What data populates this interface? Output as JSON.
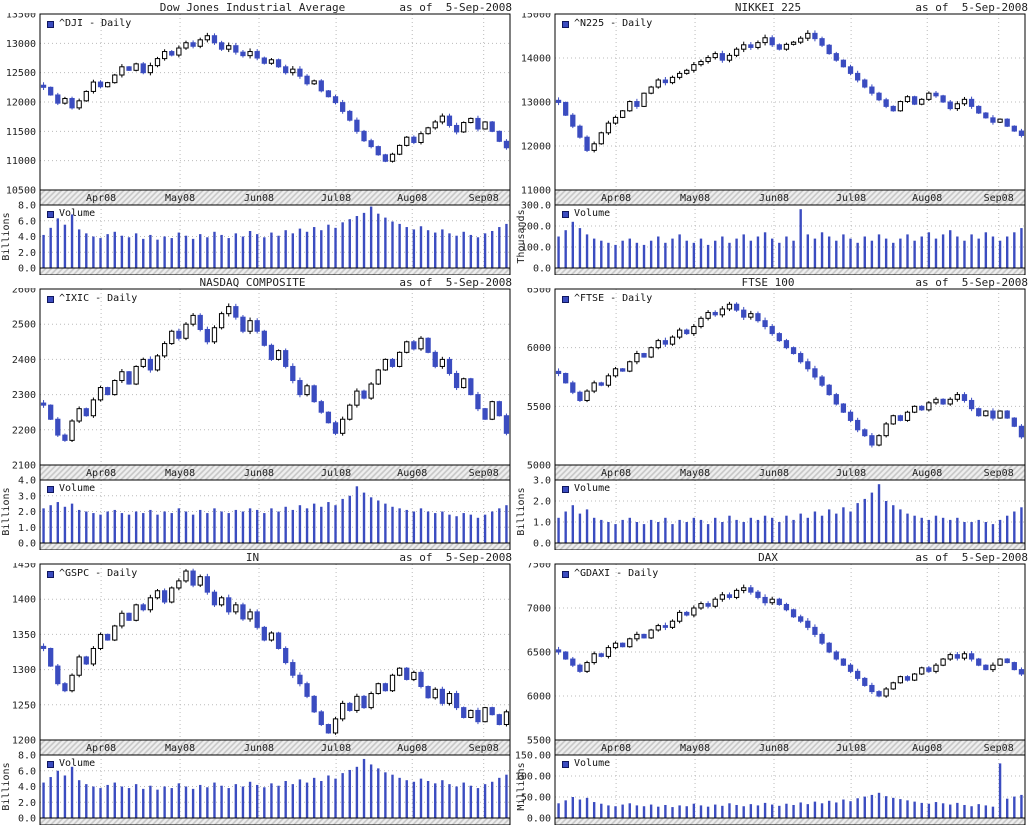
{
  "page": {
    "as_of_label": "as of  5-Sep-2008"
  },
  "colors": {
    "candle_down": "#3b4cc0",
    "candle_up_fill": "#ffffff",
    "outline": "#000000",
    "volume_bar": "#3b4cc0",
    "grid": "#bbbbbb",
    "band_bg": "#efefef",
    "band_hatch": "#c6c6c6"
  },
  "chart_data": [
    {
      "type": "candlestick",
      "symbol_title": "Dow Jones Industrial Average",
      "as_of": "as of  5-Sep-2008",
      "legend": "^DJI - Daily",
      "volume_legend": "Volume",
      "x_labels": [
        "Apr08",
        "May08",
        "Jun08",
        "Jul08",
        "Aug08",
        "Sep08"
      ],
      "price_axis": {
        "min": 10500,
        "max": 13500,
        "ticks": [
          "13500",
          "13000",
          "12500",
          "12000",
          "11500",
          "11000",
          "10500"
        ]
      },
      "volume_axis": {
        "unit": "Billions",
        "max": 8,
        "ticks": [
          "8.0",
          "6.0",
          "4.0",
          "2.0",
          "0.0"
        ]
      },
      "closes": [
        12250,
        12120,
        11980,
        12060,
        11900,
        12020,
        12180,
        12340,
        12260,
        12330,
        12460,
        12600,
        12540,
        12650,
        12500,
        12620,
        12740,
        12860,
        12800,
        12920,
        13010,
        12950,
        13060,
        13130,
        13010,
        12900,
        12960,
        12850,
        12790,
        12860,
        12750,
        12660,
        12720,
        12600,
        12500,
        12560,
        12440,
        12310,
        12360,
        12190,
        12090,
        11990,
        11840,
        11690,
        11500,
        11340,
        11240,
        11100,
        10990,
        11110,
        11260,
        11400,
        11310,
        11460,
        11560,
        11660,
        11760,
        11600,
        11490,
        11650,
        11720,
        11540,
        11660,
        11500,
        11330,
        11220
      ],
      "volumes": [
        4.2,
        5.1,
        6.3,
        5.5,
        6.8,
        4.9,
        4.4,
        4.0,
        3.8,
        4.3,
        4.6,
        4.1,
        3.9,
        4.4,
        3.7,
        4.2,
        3.6,
        4.0,
        3.8,
        4.5,
        4.1,
        3.7,
        4.3,
        3.9,
        4.6,
        4.2,
        3.8,
        4.4,
        4.0,
        4.7,
        4.3,
        3.9,
        4.5,
        4.1,
        4.8,
        4.4,
        5.0,
        4.6,
        5.2,
        4.8,
        5.5,
        5.1,
        5.8,
        6.2,
        6.6,
        7.0,
        7.8,
        6.9,
        6.4,
        5.9,
        5.6,
        5.2,
        4.9,
        5.3,
        4.8,
        4.5,
        4.9,
        4.4,
        4.1,
        4.6,
        4.2,
        3.9,
        4.4,
        4.7,
        5.2,
        5.6
      ]
    },
    {
      "type": "candlestick",
      "symbol_title": "NIKKEI 225",
      "as_of": "as of  5-Sep-2008",
      "legend": "^N225 - Daily",
      "volume_legend": "Volume",
      "x_labels": [
        "Apr08",
        "May08",
        "Jun08",
        "Jul08",
        "Aug08",
        "Sep08"
      ],
      "price_axis": {
        "min": 11000,
        "max": 15000,
        "ticks": [
          "15000",
          "14000",
          "13000",
          "12000",
          "11000"
        ]
      },
      "volume_axis": {
        "unit": "Thousands",
        "max": 300,
        "ticks": [
          "300.0",
          "200.0",
          "100.0",
          "0.0"
        ]
      },
      "closes": [
        12990,
        12700,
        12450,
        12200,
        11900,
        12050,
        12300,
        12520,
        12650,
        12800,
        13010,
        12900,
        13200,
        13340,
        13500,
        13440,
        13560,
        13650,
        13720,
        13850,
        13920,
        14010,
        14100,
        13950,
        14060,
        14200,
        14300,
        14240,
        14350,
        14460,
        14300,
        14200,
        14310,
        14360,
        14450,
        14560,
        14440,
        14290,
        14100,
        13950,
        13800,
        13650,
        13500,
        13340,
        13200,
        13050,
        12900,
        12800,
        13010,
        13120,
        12950,
        13060,
        13200,
        13140,
        13000,
        12850,
        12960,
        13060,
        12900,
        12750,
        12640,
        12540,
        12610,
        12450,
        12340,
        12240
      ],
      "volumes": [
        150,
        180,
        220,
        190,
        160,
        140,
        130,
        120,
        110,
        130,
        140,
        120,
        110,
        130,
        150,
        120,
        140,
        160,
        130,
        120,
        140,
        110,
        130,
        150,
        120,
        140,
        160,
        130,
        150,
        170,
        140,
        120,
        150,
        130,
        280,
        160,
        140,
        170,
        150,
        130,
        160,
        140,
        120,
        150,
        130,
        160,
        140,
        120,
        140,
        160,
        130,
        150,
        170,
        140,
        160,
        180,
        150,
        130,
        160,
        140,
        170,
        150,
        130,
        150,
        170,
        190
      ]
    },
    {
      "type": "candlestick",
      "symbol_title": "NASDAQ COMPOSITE",
      "as_of": "as of  5-Sep-2008",
      "legend": "^IXIC - Daily",
      "volume_legend": "Volume",
      "x_labels": [
        "Apr08",
        "May08",
        "Jun08",
        "Jul08",
        "Aug08",
        "Sep08"
      ],
      "price_axis": {
        "min": 2100,
        "max": 2600,
        "ticks": [
          "2600",
          "2500",
          "2400",
          "2300",
          "2200",
          "2100"
        ]
      },
      "volume_axis": {
        "unit": "Billions",
        "max": 4,
        "ticks": [
          "4.0",
          "3.0",
          "2.0",
          "1.0",
          "0.0"
        ]
      },
      "closes": [
        2270,
        2230,
        2185,
        2170,
        2225,
        2260,
        2240,
        2285,
        2320,
        2300,
        2340,
        2365,
        2330,
        2380,
        2400,
        2370,
        2410,
        2445,
        2480,
        2460,
        2500,
        2525,
        2485,
        2450,
        2490,
        2530,
        2550,
        2520,
        2480,
        2510,
        2480,
        2440,
        2400,
        2425,
        2380,
        2340,
        2300,
        2325,
        2280,
        2250,
        2220,
        2190,
        2230,
        2270,
        2310,
        2290,
        2330,
        2370,
        2400,
        2380,
        2420,
        2450,
        2430,
        2460,
        2420,
        2380,
        2400,
        2360,
        2320,
        2345,
        2300,
        2260,
        2230,
        2280,
        2240,
        2190
      ],
      "volumes": [
        2.2,
        2.4,
        2.6,
        2.3,
        2.5,
        2.1,
        2.0,
        1.9,
        1.8,
        2.0,
        2.1,
        1.9,
        1.8,
        2.0,
        1.9,
        2.1,
        1.8,
        2.0,
        1.9,
        2.2,
        2.0,
        1.8,
        2.1,
        1.9,
        2.2,
        2.0,
        1.9,
        2.1,
        2.0,
        2.2,
        2.1,
        1.9,
        2.2,
        2.0,
        2.3,
        2.1,
        2.4,
        2.2,
        2.5,
        2.3,
        2.6,
        2.4,
        2.8,
        3.0,
        3.6,
        3.2,
        2.9,
        2.7,
        2.5,
        2.3,
        2.2,
        2.1,
        2.0,
        2.2,
        2.0,
        1.9,
        2.0,
        1.8,
        1.7,
        1.9,
        1.8,
        1.6,
        1.8,
        2.0,
        2.2,
        2.4
      ]
    },
    {
      "type": "candlestick",
      "symbol_title": "FTSE 100",
      "as_of": "as of  5-Sep-2008",
      "legend": "^FTSE - Daily",
      "volume_legend": "Volume",
      "x_labels": [
        "Apr08",
        "May08",
        "Jun08",
        "Jul08",
        "Aug08",
        "Sep08"
      ],
      "price_axis": {
        "min": 5000,
        "max": 6500,
        "ticks": [
          "6500",
          "6000",
          "5500",
          "5000"
        ]
      },
      "volume_axis": {
        "unit": "Billions",
        "max": 3,
        "ticks": [
          "3.0",
          "2.0",
          "1.0",
          "0.0"
        ]
      },
      "closes": [
        5780,
        5700,
        5620,
        5550,
        5630,
        5700,
        5680,
        5760,
        5820,
        5800,
        5880,
        5950,
        5920,
        6000,
        6060,
        6030,
        6090,
        6150,
        6120,
        6180,
        6250,
        6300,
        6280,
        6330,
        6370,
        6320,
        6260,
        6290,
        6230,
        6180,
        6120,
        6060,
        6000,
        5950,
        5880,
        5820,
        5750,
        5680,
        5600,
        5520,
        5450,
        5380,
        5300,
        5250,
        5170,
        5250,
        5350,
        5420,
        5380,
        5450,
        5500,
        5470,
        5530,
        5560,
        5520,
        5560,
        5600,
        5550,
        5480,
        5420,
        5460,
        5400,
        5460,
        5400,
        5330,
        5240
      ],
      "volumes": [
        1.2,
        1.5,
        1.8,
        1.4,
        1.6,
        1.2,
        1.1,
        1.0,
        0.9,
        1.1,
        1.2,
        1.0,
        0.9,
        1.1,
        1.0,
        1.2,
        0.9,
        1.1,
        1.0,
        1.2,
        1.1,
        0.9,
        1.2,
        1.0,
        1.3,
        1.1,
        1.0,
        1.2,
        1.1,
        1.3,
        1.2,
        1.0,
        1.3,
        1.1,
        1.4,
        1.2,
        1.5,
        1.3,
        1.6,
        1.4,
        1.7,
        1.5,
        1.9,
        2.1,
        2.4,
        2.8,
        2.0,
        1.8,
        1.6,
        1.4,
        1.3,
        1.2,
        1.1,
        1.3,
        1.2,
        1.1,
        1.2,
        1.0,
        1.0,
        1.1,
        1.0,
        0.9,
        1.1,
        1.3,
        1.5,
        1.7
      ]
    },
    {
      "type": "candlestick",
      "symbol_title": "IN",
      "as_of": "as of  5-Sep-2008",
      "legend": "^GSPC - Daily",
      "volume_legend": "Volume",
      "x_labels": [
        "Apr08",
        "May08",
        "Jun08",
        "Jul08",
        "Aug08",
        "Sep08"
      ],
      "price_axis": {
        "min": 1200,
        "max": 1450,
        "ticks": [
          "1450",
          "1400",
          "1350",
          "1300",
          "1250",
          "1200"
        ]
      },
      "volume_axis": {
        "unit": "Billions",
        "max": 8,
        "ticks": [
          "8.0",
          "6.0",
          "4.0",
          "2.0",
          "0.0"
        ]
      },
      "closes": [
        1330,
        1305,
        1280,
        1270,
        1292,
        1318,
        1308,
        1330,
        1350,
        1342,
        1362,
        1380,
        1370,
        1392,
        1385,
        1402,
        1412,
        1396,
        1416,
        1426,
        1440,
        1420,
        1432,
        1410,
        1392,
        1402,
        1382,
        1392,
        1372,
        1382,
        1360,
        1342,
        1352,
        1330,
        1310,
        1292,
        1280,
        1262,
        1240,
        1222,
        1210,
        1230,
        1252,
        1242,
        1262,
        1246,
        1266,
        1280,
        1270,
        1292,
        1302,
        1286,
        1296,
        1276,
        1260,
        1272,
        1252,
        1266,
        1246,
        1232,
        1242,
        1226,
        1246,
        1236,
        1222,
        1240
      ],
      "volumes": [
        4.5,
        5.2,
        6.0,
        5.4,
        6.5,
        4.8,
        4.3,
        4.0,
        3.8,
        4.2,
        4.5,
        4.0,
        3.8,
        4.3,
        3.7,
        4.1,
        3.6,
        4.0,
        3.8,
        4.4,
        4.0,
        3.7,
        4.2,
        3.9,
        4.5,
        4.1,
        3.8,
        4.3,
        4.0,
        4.6,
        4.2,
        3.9,
        4.4,
        4.1,
        4.7,
        4.3,
        4.9,
        4.5,
        5.1,
        4.7,
        5.4,
        5.0,
        5.7,
        6.1,
        6.5,
        7.5,
        6.8,
        6.3,
        5.8,
        5.5,
        5.1,
        4.8,
        4.6,
        5.0,
        4.7,
        4.4,
        4.8,
        4.3,
        4.0,
        4.5,
        4.1,
        3.8,
        4.3,
        4.6,
        5.1,
        5.5
      ]
    },
    {
      "type": "candlestick",
      "symbol_title": "DAX",
      "as_of": "as of  5-Sep-2008",
      "legend": "^GDAXI - Daily",
      "volume_legend": "Volume",
      "x_labels": [
        "Apr08",
        "May08",
        "Jun08",
        "Jul08",
        "Aug08",
        "Sep08"
      ],
      "price_axis": {
        "min": 5500,
        "max": 7500,
        "ticks": [
          "7500",
          "7000",
          "6500",
          "6000",
          "5500"
        ]
      },
      "volume_axis": {
        "unit": "Millions",
        "max": 150,
        "ticks": [
          "150.00",
          "100.00",
          "50.00",
          "0.00"
        ]
      },
      "closes": [
        6500,
        6420,
        6350,
        6280,
        6380,
        6480,
        6450,
        6550,
        6600,
        6560,
        6650,
        6700,
        6660,
        6750,
        6800,
        6780,
        6850,
        6950,
        6920,
        7000,
        7050,
        7020,
        7100,
        7150,
        7120,
        7200,
        7230,
        7180,
        7120,
        7060,
        7100,
        7040,
        6980,
        6900,
        6850,
        6780,
        6700,
        6600,
        6500,
        6420,
        6350,
        6280,
        6200,
        6120,
        6050,
        6000,
        6080,
        6150,
        6220,
        6180,
        6250,
        6320,
        6280,
        6350,
        6420,
        6470,
        6430,
        6480,
        6420,
        6350,
        6300,
        6350,
        6420,
        6380,
        6300,
        6250
      ],
      "volumes": [
        35,
        42,
        50,
        44,
        48,
        38,
        34,
        30,
        28,
        32,
        35,
        30,
        28,
        32,
        27,
        31,
        26,
        30,
        28,
        34,
        30,
        27,
        32,
        29,
        35,
        31,
        28,
        33,
        30,
        36,
        32,
        29,
        34,
        31,
        37,
        33,
        39,
        35,
        41,
        37,
        44,
        40,
        47,
        51,
        55,
        60,
        52,
        48,
        45,
        42,
        39,
        36,
        34,
        38,
        35,
        32,
        36,
        31,
        28,
        33,
        30,
        27,
        130,
        46,
        51,
        55
      ]
    }
  ]
}
